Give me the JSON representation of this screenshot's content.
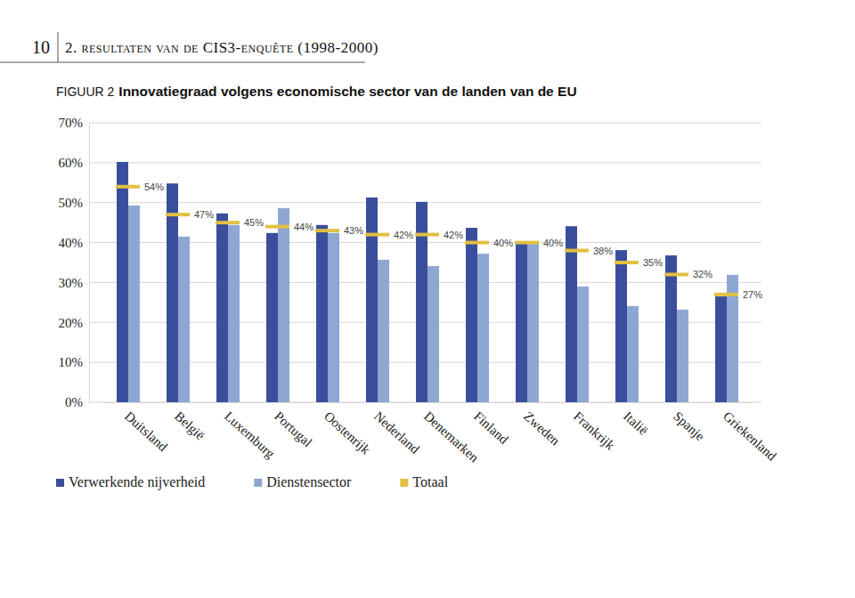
{
  "page": {
    "number": "10",
    "header": "2. resultaten van de CIS3-enquête (1998-2000)"
  },
  "chart_data": {
    "type": "bar",
    "figure_label": "FIGUUR 2",
    "title": "Innovatiegraad volgens economische sector van de landen van de EU",
    "categories": [
      "Duitsland",
      "België",
      "Luxemburg",
      "Portugal",
      "Oostenrijk",
      "Nederland",
      "Denemarken",
      "Finland",
      "Zweden",
      "Frankrijk",
      "Italië",
      "Spanje",
      "Griekenland"
    ],
    "series": [
      {
        "name": "Verwerkende nijverheid",
        "color": "#3b4e9c",
        "values": [
          60.2,
          54.8,
          47.3,
          42.4,
          44.4,
          51.3,
          50.2,
          43.7,
          39.9,
          44.1,
          38.1,
          36.8,
          26.5
        ]
      },
      {
        "name": "Dienstensector",
        "color": "#8ea7d2",
        "values": [
          49.3,
          41.5,
          44.4,
          48.6,
          42.4,
          35.7,
          34.1,
          37.2,
          39.9,
          29.0,
          24.1,
          23.2,
          31.9
        ]
      },
      {
        "name": "Totaal",
        "type": "scatter",
        "marker": "dash",
        "color": "#e2c043",
        "data_labels": true,
        "values": [
          54,
          47,
          45,
          44,
          43,
          42,
          42,
          40,
          40,
          38,
          35,
          32,
          27
        ],
        "value_labels": [
          "54%",
          "47%",
          "45%",
          "44%",
          "43%",
          "42%",
          "42%",
          "40%",
          "40%",
          "38%",
          "35%",
          "32%",
          "27%"
        ]
      }
    ],
    "ylim": [
      0,
      70
    ],
    "yticks": [
      {
        "value": 0,
        "label": "0%"
      },
      {
        "value": 10,
        "label": "10%"
      },
      {
        "value": 20,
        "label": "20%"
      },
      {
        "value": 30,
        "label": "30%"
      },
      {
        "value": 40,
        "label": "40%"
      },
      {
        "value": 50,
        "label": "50%"
      },
      {
        "value": 60,
        "label": "60%"
      },
      {
        "value": 70,
        "label": "70%"
      }
    ],
    "grid": true,
    "legend": "bottom"
  }
}
